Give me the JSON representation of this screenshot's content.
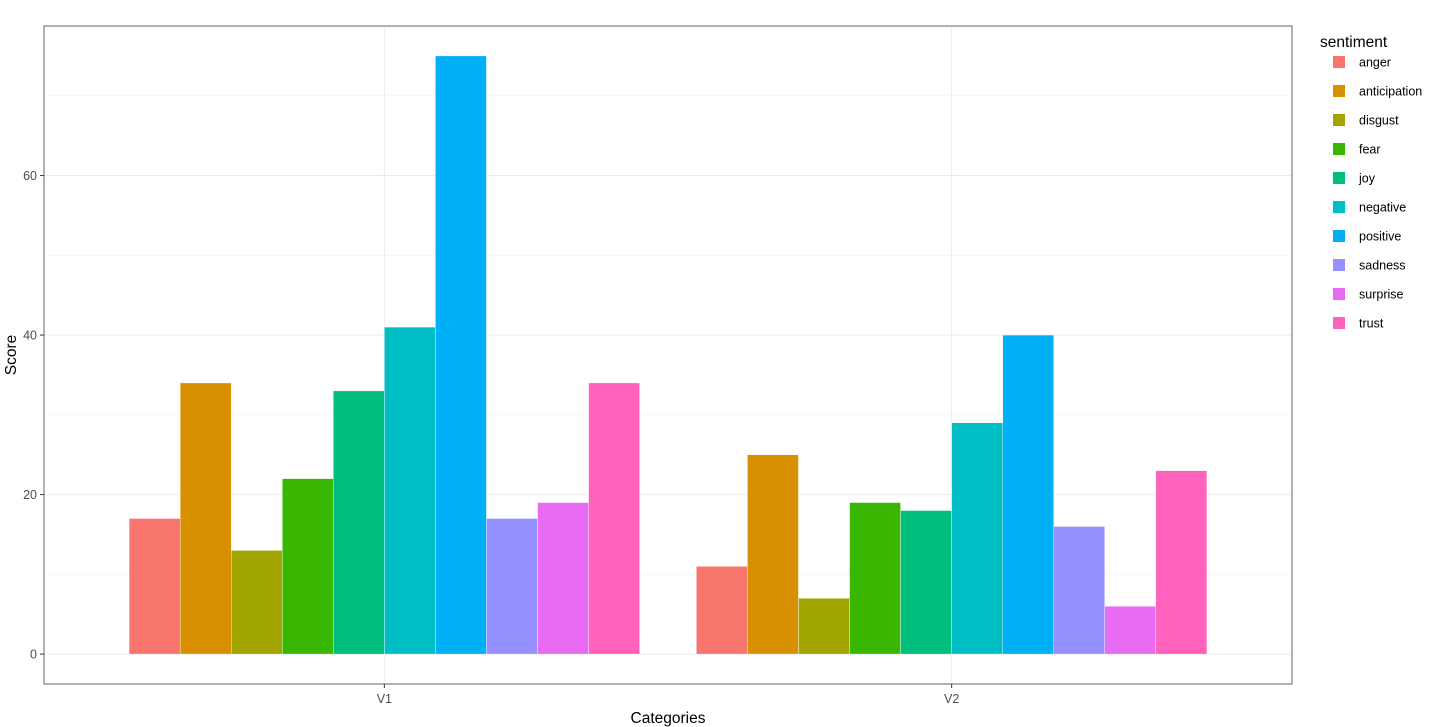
{
  "chart_data": {
    "type": "bar",
    "xlabel": "Categories",
    "ylabel": "Score",
    "categories": [
      "V1",
      "V2"
    ],
    "ylim": [
      -3.75,
      78.75
    ],
    "yticks": [
      0,
      20,
      40,
      60
    ],
    "grid": true,
    "legend": {
      "title": "sentiment",
      "position": "right"
    },
    "series": [
      {
        "name": "anger",
        "color": "#F8766D",
        "values": [
          17,
          11
        ]
      },
      {
        "name": "anticipation",
        "color": "#D89000",
        "values": [
          34,
          25
        ]
      },
      {
        "name": "disgust",
        "color": "#A3A500",
        "values": [
          13,
          7
        ]
      },
      {
        "name": "fear",
        "color": "#39B600",
        "values": [
          22,
          19
        ]
      },
      {
        "name": "joy",
        "color": "#00BF7D",
        "values": [
          33,
          18
        ]
      },
      {
        "name": "negative",
        "color": "#00BFC4",
        "values": [
          41,
          29
        ]
      },
      {
        "name": "positive",
        "color": "#00B0F6",
        "values": [
          75,
          40
        ]
      },
      {
        "name": "sadness",
        "color": "#9590FF",
        "values": [
          17,
          16
        ]
      },
      {
        "name": "surprise",
        "color": "#E76BF3",
        "values": [
          19,
          6
        ]
      },
      {
        "name": "trust",
        "color": "#FF62BC",
        "values": [
          34,
          23
        ]
      }
    ]
  }
}
